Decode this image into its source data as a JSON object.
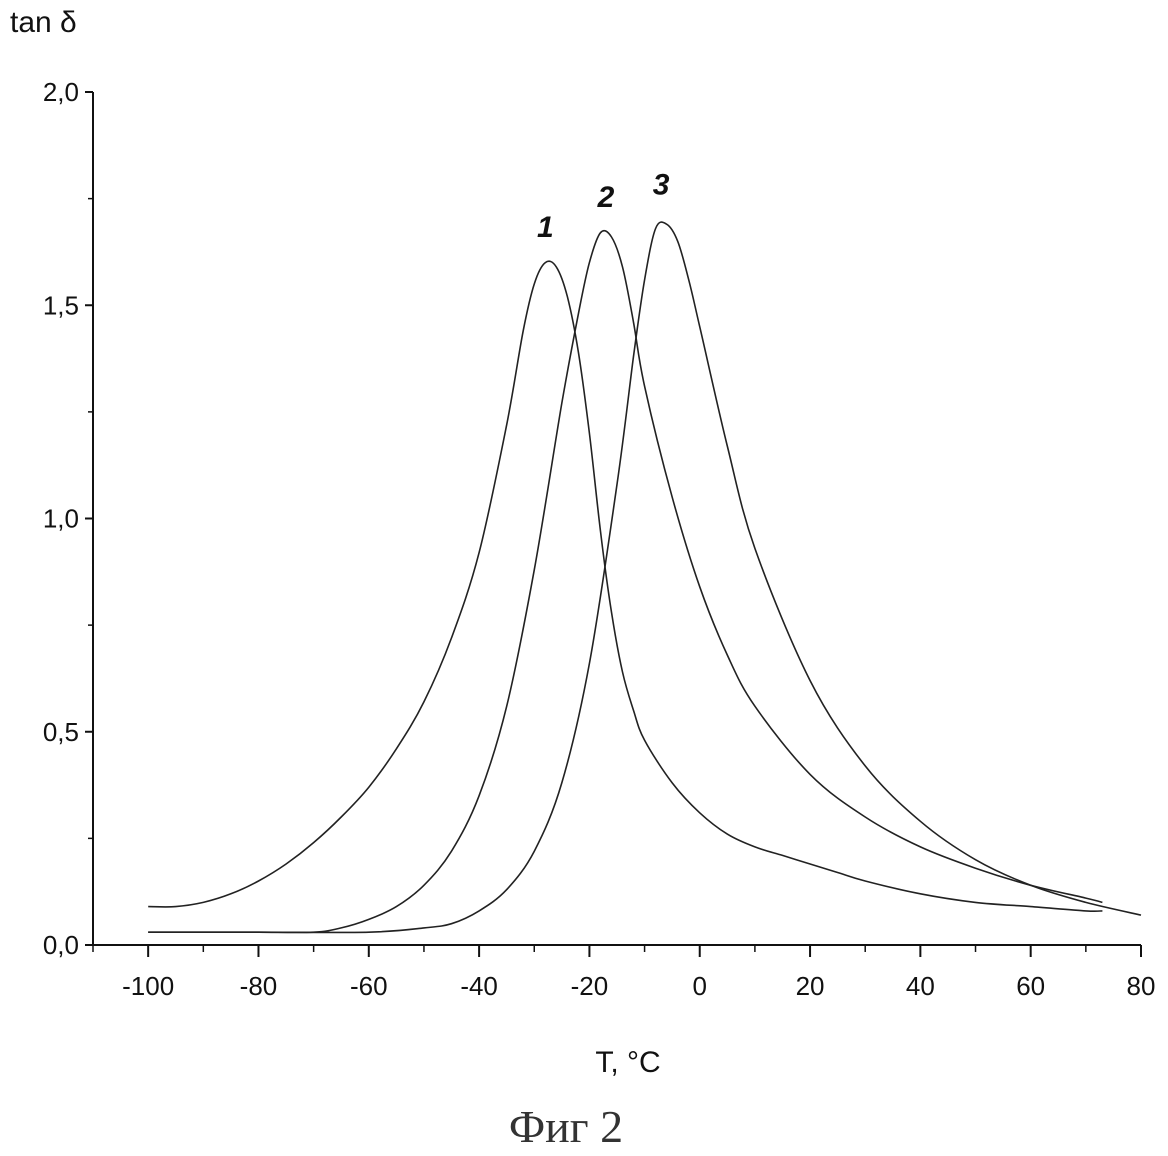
{
  "chart_data": {
    "type": "line",
    "title": "",
    "xlabel": "T, °C",
    "ylabel": "tan δ",
    "caption": "Фиг 2",
    "xlim": [
      -110,
      80
    ],
    "ylim": [
      0.0,
      2.0
    ],
    "x_ticks": [
      -100,
      -80,
      -60,
      -40,
      -20,
      0,
      20,
      40,
      60,
      80
    ],
    "y_ticks": [
      0.0,
      0.5,
      1.0,
      1.5,
      2.0
    ],
    "x_tick_labels": [
      "-100",
      "-80",
      "-60",
      "-40",
      "-20",
      "0",
      "20",
      "40",
      "60",
      "80"
    ],
    "y_tick_labels": [
      "0,0",
      "0,5",
      "1,0",
      "1,5",
      "2,0"
    ],
    "grid": false,
    "series": [
      {
        "label": "1",
        "label_pos": [
          -28,
          1.66
        ],
        "x": [
          -100,
          -95,
          -90,
          -85,
          -80,
          -75,
          -70,
          -65,
          -60,
          -55,
          -50,
          -45,
          -40,
          -35,
          -32,
          -30,
          -28,
          -26,
          -24,
          -22,
          -20,
          -18,
          -16,
          -14,
          -12,
          -10,
          -5,
          0,
          5,
          10,
          15,
          20,
          25,
          30,
          40,
          50,
          60,
          70,
          73
        ],
        "y": [
          0.09,
          0.09,
          0.1,
          0.12,
          0.15,
          0.19,
          0.24,
          0.3,
          0.37,
          0.46,
          0.57,
          0.72,
          0.92,
          1.22,
          1.44,
          1.55,
          1.6,
          1.59,
          1.52,
          1.39,
          1.2,
          0.97,
          0.78,
          0.64,
          0.55,
          0.48,
          0.38,
          0.31,
          0.26,
          0.23,
          0.21,
          0.19,
          0.17,
          0.15,
          0.12,
          0.1,
          0.09,
          0.08,
          0.08
        ]
      },
      {
        "label": "2",
        "label_pos": [
          -17,
          1.73
        ],
        "x": [
          -100,
          -90,
          -80,
          -70,
          -65,
          -60,
          -55,
          -50,
          -45,
          -40,
          -35,
          -30,
          -25,
          -22,
          -20,
          -18,
          -16,
          -14,
          -12,
          -10,
          -5,
          0,
          5,
          10,
          20,
          30,
          40,
          50,
          60,
          70,
          73
        ],
        "y": [
          0.03,
          0.03,
          0.03,
          0.03,
          0.04,
          0.06,
          0.09,
          0.14,
          0.22,
          0.35,
          0.56,
          0.88,
          1.27,
          1.48,
          1.6,
          1.67,
          1.66,
          1.59,
          1.46,
          1.31,
          1.05,
          0.84,
          0.68,
          0.56,
          0.4,
          0.3,
          0.23,
          0.18,
          0.14,
          0.11,
          0.1
        ]
      },
      {
        "label": "3",
        "label_pos": [
          -7,
          1.76
        ],
        "x": [
          -100,
          -80,
          -60,
          -50,
          -45,
          -40,
          -35,
          -30,
          -25,
          -20,
          -15,
          -12,
          -10,
          -8,
          -6,
          -4,
          -2,
          0,
          5,
          10,
          20,
          30,
          40,
          50,
          60,
          70,
          80
        ],
        "y": [
          0.03,
          0.03,
          0.03,
          0.04,
          0.05,
          0.08,
          0.13,
          0.22,
          0.38,
          0.66,
          1.08,
          1.38,
          1.56,
          1.68,
          1.69,
          1.65,
          1.56,
          1.45,
          1.17,
          0.93,
          0.62,
          0.42,
          0.29,
          0.2,
          0.14,
          0.1,
          0.07
        ]
      }
    ]
  }
}
